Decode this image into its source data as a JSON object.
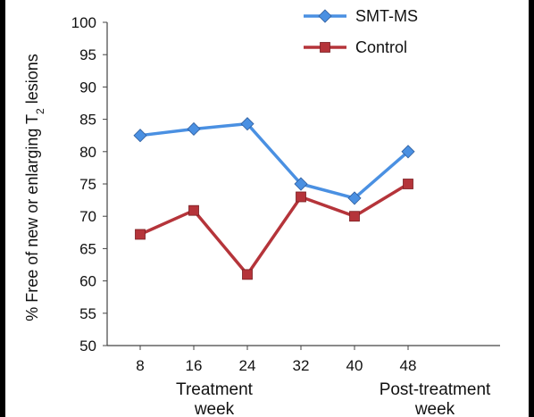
{
  "chart_data": {
    "type": "line",
    "title": "",
    "ylabel": {
      "prefix": "% Free of new or enlarging T",
      "subscript": "2",
      "suffix": " lesions"
    },
    "x": [
      8,
      16,
      24,
      32,
      40,
      48
    ],
    "x_tick_labels": [
      "8",
      "16",
      "24",
      "32",
      "40",
      "48"
    ],
    "x_groups": [
      {
        "line1": "Treatment",
        "line2": "week"
      },
      {
        "line1": "Post-treatment",
        "line2": "week"
      }
    ],
    "ylim": [
      50,
      100
    ],
    "y_ticks": [
      50,
      55,
      60,
      65,
      70,
      75,
      80,
      85,
      90,
      95,
      100
    ],
    "grid": false,
    "legend_position": "top-right",
    "series": [
      {
        "name": "SMT-MS",
        "color": "#4a90e2",
        "marker": "diamond",
        "values": [
          82.5,
          83.5,
          84.3,
          75.0,
          72.8,
          80.0
        ]
      },
      {
        "name": "Control",
        "color": "#b5343a",
        "marker": "square",
        "values": [
          67.2,
          70.9,
          61.0,
          73.0,
          70.0,
          75.0
        ]
      }
    ]
  }
}
